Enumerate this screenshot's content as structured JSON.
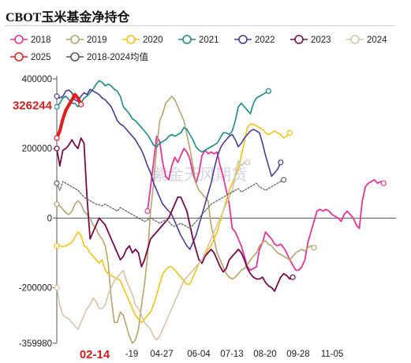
{
  "chart_data": {
    "type": "line",
    "title": "CBOT玉米基金净持仓",
    "watermark": "紫金天风期货",
    "y_ticks": [
      400000,
      200000,
      0,
      -200000,
      -359980
    ],
    "y_tick_labels": [
      "400000",
      "200000",
      "0",
      "-200000",
      "-359980"
    ],
    "ylim": [
      -359980,
      400000
    ],
    "x_tick_labels": [
      "-19",
      "04-27",
      "06-04",
      "07-13",
      "08-20",
      "09-28",
      "11-05"
    ],
    "current_date_label": "02-14",
    "current_value_label": "326244",
    "current_value": 326244,
    "legend_rows": [
      [
        {
          "name": "2018",
          "color": "#e8339a",
          "marker": "circle"
        },
        {
          "name": "2019",
          "color": "#b5a56a",
          "marker": "circle"
        },
        {
          "name": "2020",
          "color": "#f5c211",
          "marker": "circle"
        },
        {
          "name": "2021",
          "color": "#1a8a8a",
          "marker": "circle"
        },
        {
          "name": "2022",
          "color": "#4b3a9a",
          "marker": "circle"
        },
        {
          "name": "2023",
          "color": "#7a0a4a",
          "marker": "circle"
        },
        {
          "name": "2024",
          "color": "#d4c4a8",
          "marker": "circle"
        }
      ],
      [
        {
          "name": "2025",
          "color": "#e02020",
          "marker": "circle"
        },
        {
          "name": "2018-2024均值",
          "color": "#555555",
          "marker": "circle"
        }
      ]
    ],
    "series": [
      {
        "name": "2018",
        "color": "#e8339a",
        "width": 1.8,
        "dash": "",
        "values": [
          null,
          null,
          null,
          null,
          null,
          null,
          null,
          null,
          null,
          null,
          null,
          null,
          null,
          null,
          null,
          null,
          null,
          null,
          null,
          null,
          null,
          null,
          null,
          null,
          null,
          null,
          null,
          null,
          null,
          null,
          20000,
          90000,
          160000,
          235000,
          220000,
          160000,
          120000,
          110000,
          150000,
          175000,
          160000,
          180000,
          200000,
          190000,
          170000,
          130000,
          100000,
          130000,
          180000,
          195000,
          185000,
          190000,
          185000,
          190000,
          150000,
          120000,
          80000,
          40000,
          -30000,
          -40000,
          -60000,
          -80000,
          -110000,
          -140000,
          -150000,
          -145000,
          -140000,
          -90000,
          -70000,
          -40000,
          -50000,
          -60000,
          -75000,
          -80000,
          -75000,
          -85000,
          -100000,
          -120000,
          -135000,
          -150000,
          -150000,
          -140000,
          -120000,
          -70000,
          -40000,
          -10000,
          20000,
          25000,
          20000,
          25000,
          20000,
          10000,
          5000,
          0,
          -10000,
          10000,
          20000,
          10000,
          0,
          -20000,
          -30000,
          50000,
          90000,
          100000,
          105000,
          110000,
          100000,
          105000,
          100000
        ]
      },
      {
        "name": "2019",
        "color": "#b5a56a",
        "width": 1.6,
        "dash": "",
        "values": [
          40000,
          35000,
          25000,
          15000,
          10000,
          20000,
          40000,
          50000,
          40000,
          20000,
          10000,
          0,
          -20000,
          -30000,
          -50000,
          -60000,
          -80000,
          -130000,
          -230000,
          -300000,
          -300000,
          -270000,
          -280000,
          -310000,
          -340000,
          -360000,
          -350000,
          -320000,
          -250000,
          -190000,
          -110000,
          20000,
          100000,
          200000,
          280000,
          300000,
          330000,
          340000,
          350000,
          340000,
          320000,
          300000,
          280000,
          240000,
          200000,
          150000,
          100000,
          80000,
          70000,
          60000,
          50000,
          -20000,
          -60000,
          -100000,
          -120000,
          -140000,
          -160000,
          -170000,
          -175000,
          -170000,
          -160000,
          -150000,
          -145000,
          -135000,
          -120000,
          -110000,
          -100000,
          -80000,
          -70000,
          -65000,
          -75000,
          -80000,
          -90000,
          -100000,
          -105000,
          -110000,
          -115000,
          -120000,
          -110000,
          -100000,
          -95000,
          -90000,
          -95000,
          -85000,
          -80000,
          -85000
        ]
      },
      {
        "name": "2020",
        "color": "#f5c211",
        "width": 1.6,
        "dash": "",
        "values": [
          -80000,
          -80000,
          -82000,
          -80000,
          -75000,
          -70000,
          -55000,
          -40000,
          -50000,
          -80000,
          -85000,
          -100000,
          -110000,
          -120000,
          -130000,
          -120000,
          -150000,
          -160000,
          -165000,
          -170000,
          -175000,
          -180000,
          -200000,
          -220000,
          -240000,
          -260000,
          -280000,
          -290000,
          -300000,
          -290000,
          -280000,
          -270000,
          -250000,
          -220000,
          -190000,
          -160000,
          -150000,
          -140000,
          -140000,
          -150000,
          -160000,
          -170000,
          -180000,
          -190000,
          -190000,
          -170000,
          -150000,
          -130000,
          -120000,
          -110000,
          -90000,
          -80000,
          -60000,
          -40000,
          -10000,
          20000,
          50000,
          80000,
          100000,
          120000,
          140000,
          180000,
          220000,
          260000,
          270000,
          270000,
          265000,
          260000,
          255000,
          245000,
          240000,
          245000,
          250000,
          245000,
          240000,
          230000,
          235000,
          245000
        ]
      },
      {
        "name": "2021",
        "color": "#1a8a8a",
        "width": 1.6,
        "dash": "",
        "values": [
          320000,
          330000,
          345000,
          350000,
          340000,
          330000,
          330000,
          320000,
          330000,
          345000,
          350000,
          360000,
          370000,
          385000,
          395000,
          390000,
          380000,
          385000,
          380000,
          370000,
          365000,
          350000,
          320000,
          310000,
          300000,
          285000,
          280000,
          270000,
          260000,
          250000,
          240000,
          225000,
          210000,
          205000,
          215000,
          220000,
          225000,
          235000,
          240000,
          235000,
          240000,
          245000,
          260000,
          255000,
          240000,
          225000,
          205000,
          195000,
          190000,
          195000,
          200000,
          205000,
          210000,
          215000,
          230000,
          245000,
          245000,
          240000,
          250000,
          280000,
          320000,
          330000,
          320000,
          310000,
          300000,
          330000,
          345000,
          350000,
          355000,
          360000,
          365000
        ]
      },
      {
        "name": "2022",
        "color": "#4b3a9a",
        "width": 1.6,
        "dash": "",
        "values": [
          350000,
          345000,
          350000,
          365000,
          368000,
          360000,
          340000,
          335000,
          350000,
          360000,
          355000,
          370000,
          365000,
          360000,
          355000,
          345000,
          340000,
          330000,
          320000,
          300000,
          280000,
          270000,
          265000,
          255000,
          245000,
          235000,
          225000,
          210000,
          195000,
          175000,
          150000,
          130000,
          100000,
          80000,
          60000,
          40000,
          30000,
          20000,
          10000,
          -10000,
          -30000,
          -50000,
          -65000,
          -80000,
          -90000,
          -70000,
          -50000,
          -20000,
          10000,
          40000,
          70000,
          100000,
          140000,
          175000,
          200000,
          215000,
          225000,
          235000,
          240000,
          225000,
          205000,
          215000,
          230000,
          240000,
          250000,
          255000,
          250000,
          245000,
          215000,
          180000,
          150000,
          120000,
          130000,
          140000,
          160000
        ]
      },
      {
        "name": "2023",
        "color": "#7a0a4a",
        "width": 1.8,
        "dash": "",
        "values": [
          200000,
          150000,
          195000,
          200000,
          210000,
          225000,
          210000,
          200000,
          230000,
          215000,
          60000,
          -60000,
          -40000,
          -20000,
          0,
          -10000,
          -20000,
          -40000,
          -60000,
          -80000,
          -100000,
          -120000,
          -110000,
          -90000,
          -80000,
          -100000,
          -90000,
          -100000,
          -140000,
          -120000,
          -90000,
          -60000,
          -50000,
          -40000,
          -30000,
          -20000,
          -10000,
          0,
          20000,
          40000,
          60000,
          60000,
          40000,
          20000,
          -20000,
          -60000,
          -90000,
          -120000,
          -130000,
          -110000,
          -100000,
          -90000,
          -100000,
          -120000,
          -140000,
          -155000,
          -145000,
          -120000,
          -110000,
          -100000,
          -90000,
          -100000,
          -120000,
          -145000,
          -160000,
          -170000,
          -175000,
          -175000,
          -170000,
          -185000,
          -195000,
          -200000,
          -210000,
          -190000,
          -170000,
          -160000,
          -165000,
          -175000,
          -170000
        ]
      },
      {
        "name": "2024",
        "color": "#d4c4a8",
        "width": 1.6,
        "dash": "",
        "values": [
          -200000,
          -250000,
          -280000,
          -285000,
          -290000,
          -300000,
          -310000,
          -320000,
          -300000,
          -280000,
          -260000,
          -250000,
          -230000,
          -240000,
          -260000,
          -260000,
          -250000,
          -220000,
          -200000,
          -180000,
          -170000,
          -160000,
          -150000,
          -180000,
          -200000,
          -220000,
          -250000,
          -260000,
          -280000,
          -300000,
          -310000,
          -320000,
          -340000,
          -350000,
          -340000,
          -320000,
          -300000,
          -280000,
          -260000,
          -240000,
          -220000,
          -200000,
          -180000,
          -170000,
          -160000,
          -150000,
          -140000,
          -130000,
          -120000,
          -100000,
          -80000,
          -60000,
          -40000,
          -20000,
          0,
          20000,
          40000,
          60000,
          80000,
          120000,
          165000,
          150000,
          160000,
          160000
        ]
      },
      {
        "name": "2025",
        "color": "#e02020",
        "width": 4.2,
        "dash": "",
        "values": [
          230000,
          250000,
          285000,
          310000,
          325000,
          340000,
          355000,
          345000,
          326244
        ]
      },
      {
        "name": "2018-2024均值",
        "color": "#666666",
        "width": 1.3,
        "dash": "2,2",
        "values": [
          100000,
          80000,
          105000,
          100000,
          95000,
          90000,
          85000,
          80000,
          70000,
          60000,
          55000,
          50000,
          45000,
          40000,
          38000,
          35000,
          40000,
          35000,
          30000,
          25000,
          20000,
          30000,
          25000,
          20000,
          15000,
          10000,
          5000,
          0,
          -5000,
          -10000,
          -5000,
          0,
          -5000,
          -10000,
          -15000,
          -10000,
          -5000,
          -10000,
          -20000,
          -25000,
          -20000,
          -15000,
          -20000,
          -25000,
          -30000,
          -20000,
          -10000,
          0,
          10000,
          20000,
          30000,
          40000,
          45000,
          50000,
          55000,
          60000,
          65000,
          70000,
          75000,
          80000,
          85000,
          75000,
          80000,
          85000,
          90000,
          95000,
          100000,
          90000,
          85000,
          80000,
          85000,
          90000,
          95000,
          100000,
          105000,
          110000
        ]
      }
    ]
  }
}
